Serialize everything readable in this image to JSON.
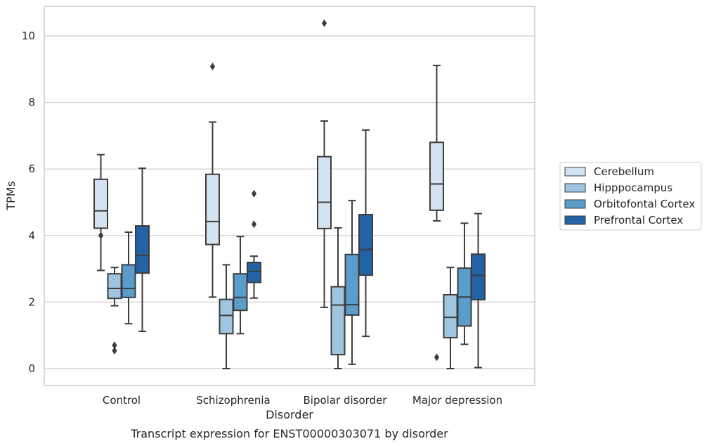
{
  "chart_data": {
    "type": "box",
    "xlabel": "Disorder",
    "ylabel": "TPMs",
    "caption": "Transcript expression for ENST00000303071 by disorder",
    "ylim": [
      -0.5,
      10.9
    ],
    "yticks": [
      "0",
      "2",
      "4",
      "6",
      "8",
      "10"
    ],
    "grid": "horizontal",
    "legend_position": "right",
    "categories": [
      "Control",
      "Schizophrenia",
      "Bipolar disorder",
      "Major depression"
    ],
    "series": [
      {
        "name": "Cerebellum",
        "color": "#d4e3f1",
        "boxes": [
          {
            "whisker_low": 2.95,
            "q1": 4.22,
            "median": 4.74,
            "q3": 5.69,
            "whisker_high": 6.43,
            "outliers": [
              4.0
            ]
          },
          {
            "whisker_low": 2.15,
            "q1": 3.73,
            "median": 4.42,
            "q3": 5.84,
            "whisker_high": 7.41,
            "outliers": [
              9.08
            ]
          },
          {
            "whisker_low": 1.84,
            "q1": 4.21,
            "median": 5.0,
            "q3": 6.37,
            "whisker_high": 7.44,
            "outliers": [
              10.38
            ]
          },
          {
            "whisker_low": 4.44,
            "q1": 4.76,
            "median": 5.55,
            "q3": 6.8,
            "whisker_high": 9.11,
            "outliers": [
              0.34
            ]
          }
        ]
      },
      {
        "name": "Hipppocampus",
        "color": "#9fc5e0",
        "boxes": [
          {
            "whisker_low": 1.89,
            "q1": 2.11,
            "median": 2.41,
            "q3": 2.85,
            "whisker_high": 3.04,
            "outliers": [
              0.7,
              0.54
            ]
          },
          {
            "whisker_low": 0.0,
            "q1": 1.05,
            "median": 1.6,
            "q3": 2.08,
            "whisker_high": 3.12,
            "outliers": []
          },
          {
            "whisker_low": 0.0,
            "q1": 0.42,
            "median": 1.91,
            "q3": 2.46,
            "whisker_high": 4.23,
            "outliers": []
          },
          {
            "whisker_low": 0.0,
            "q1": 0.93,
            "median": 1.54,
            "q3": 2.22,
            "whisker_high": 3.04,
            "outliers": []
          }
        ]
      },
      {
        "name": "Orbitofontal Cortex",
        "color": "#5a9dcb",
        "boxes": [
          {
            "whisker_low": 1.35,
            "q1": 2.14,
            "median": 2.41,
            "q3": 3.12,
            "whisker_high": 4.1,
            "outliers": []
          },
          {
            "whisker_low": 1.05,
            "q1": 1.75,
            "median": 2.14,
            "q3": 2.85,
            "whisker_high": 3.97,
            "outliers": []
          },
          {
            "whisker_low": 0.13,
            "q1": 1.61,
            "median": 1.92,
            "q3": 3.43,
            "whisker_high": 5.05,
            "outliers": []
          },
          {
            "whisker_low": 0.73,
            "q1": 1.28,
            "median": 2.15,
            "q3": 3.02,
            "whisker_high": 4.37,
            "outliers": []
          }
        ]
      },
      {
        "name": "Prefrontal Cortex",
        "color": "#2362a5",
        "boxes": [
          {
            "whisker_low": 1.12,
            "q1": 2.87,
            "median": 3.4,
            "q3": 4.29,
            "whisker_high": 6.02,
            "outliers": []
          },
          {
            "whisker_low": 2.12,
            "q1": 2.59,
            "median": 2.92,
            "q3": 3.19,
            "whisker_high": 3.38,
            "outliers": [
              5.26,
              4.34
            ]
          },
          {
            "whisker_low": 0.97,
            "q1": 2.81,
            "median": 3.58,
            "q3": 4.63,
            "whisker_high": 7.17,
            "outliers": []
          },
          {
            "whisker_low": 0.03,
            "q1": 2.07,
            "median": 2.8,
            "q3": 3.44,
            "whisker_high": 4.66,
            "outliers": []
          }
        ]
      }
    ]
  }
}
